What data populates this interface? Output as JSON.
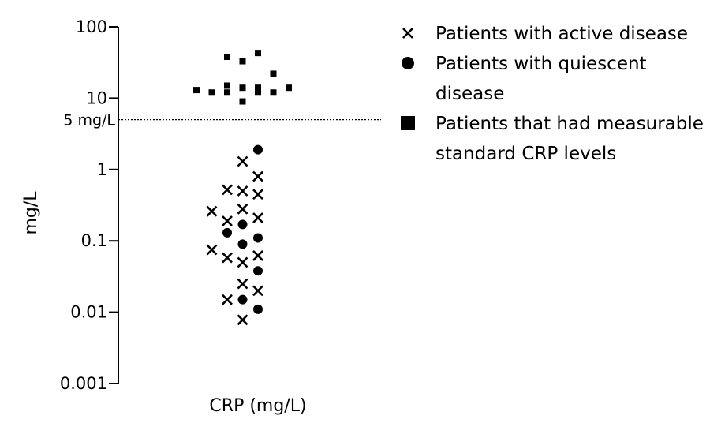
{
  "chart_data": {
    "type": "scatter",
    "title": "",
    "xlabel": "CRP (mg/L)",
    "ylabel": "mg/L",
    "y_scale": "log",
    "ylim": [
      0.001,
      100
    ],
    "y_ticks": [
      {
        "value": 100,
        "label": "100"
      },
      {
        "value": 10,
        "label": "10"
      },
      {
        "value": 1,
        "label": "1"
      },
      {
        "value": 0.1,
        "label": "0.1"
      },
      {
        "value": 0.01,
        "label": "0.01"
      },
      {
        "value": 0.001,
        "label": "0.001"
      }
    ],
    "reference_line": {
      "value": 5,
      "label": "5 mg/L",
      "style": "dotted"
    },
    "x_positions": [
      -4,
      -3,
      -2,
      -1,
      0,
      1,
      2,
      3
    ],
    "legend_placement": "right",
    "grid": false,
    "series": [
      {
        "name": "Patients with active disease",
        "marker": "x",
        "points": [
          {
            "x": -1,
            "y": 1.3
          },
          {
            "x": 0,
            "y": 0.8
          },
          {
            "x": -2,
            "y": 0.52
          },
          {
            "x": -1,
            "y": 0.5
          },
          {
            "x": 0,
            "y": 0.45
          },
          {
            "x": -1,
            "y": 0.28
          },
          {
            "x": -3,
            "y": 0.26
          },
          {
            "x": 0,
            "y": 0.21
          },
          {
            "x": -2,
            "y": 0.19
          },
          {
            "x": -3,
            "y": 0.075
          },
          {
            "x": 0,
            "y": 0.062
          },
          {
            "x": -2,
            "y": 0.058
          },
          {
            "x": -1,
            "y": 0.05
          },
          {
            "x": -1,
            "y": 0.025
          },
          {
            "x": 0,
            "y": 0.02
          },
          {
            "x": -2,
            "y": 0.015
          },
          {
            "x": -1,
            "y": 0.0078
          }
        ]
      },
      {
        "name": "Patients with quiescent disease",
        "marker": "circle",
        "points": [
          {
            "x": 0,
            "y": 1.9
          },
          {
            "x": -1,
            "y": 0.17
          },
          {
            "x": -2,
            "y": 0.13
          },
          {
            "x": 0,
            "y": 0.11
          },
          {
            "x": -1,
            "y": 0.09
          },
          {
            "x": 0,
            "y": 0.038
          },
          {
            "x": -1,
            "y": 0.015
          },
          {
            "x": 0,
            "y": 0.011
          }
        ]
      },
      {
        "name": "Patients that had measurable standard CRP levels",
        "marker": "square",
        "points": [
          {
            "x": 0,
            "y": 43
          },
          {
            "x": -2,
            "y": 38
          },
          {
            "x": -1,
            "y": 33
          },
          {
            "x": 1,
            "y": 22
          },
          {
            "x": -2,
            "y": 15
          },
          {
            "x": -1,
            "y": 14
          },
          {
            "x": 0,
            "y": 14
          },
          {
            "x": 2,
            "y": 14
          },
          {
            "x": -4,
            "y": 13
          },
          {
            "x": -2,
            "y": 12
          },
          {
            "x": -3,
            "y": 12
          },
          {
            "x": 0,
            "y": 12
          },
          {
            "x": 1,
            "y": 12
          },
          {
            "x": -1,
            "y": 9
          }
        ]
      }
    ],
    "legend": [
      {
        "marker": "x",
        "lines": [
          "Patients with active disease"
        ]
      },
      {
        "marker": "circle",
        "lines": [
          "Patients with quiescent",
          "disease"
        ]
      },
      {
        "marker": "square",
        "lines": [
          "Patients that had measurable",
          "standard CRP levels"
        ]
      }
    ]
  }
}
